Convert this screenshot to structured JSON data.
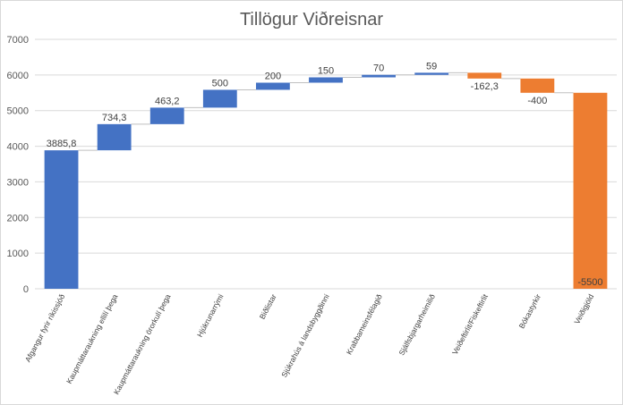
{
  "chart_data": {
    "type": "bar",
    "subtype": "waterfall",
    "title": "Tillögur Viðreisnar",
    "xlabel": "",
    "ylabel": "",
    "ylim": [
      0,
      7000
    ],
    "yticks": [
      "0",
      "1000",
      "2000",
      "3000",
      "4000",
      "5000",
      "6000",
      "7000"
    ],
    "grid": true,
    "categories": [
      "Afgangur fyrir ríkissjóð",
      "Kaupmáttaraukning ellilí þega",
      "Kaupmáttaraukning örorkulí þega",
      "Hjúkrunarrými",
      "Biðlistar",
      "Sjúkrahús á landsbyggðinni",
      "Krabbameinsfélagið",
      "Sjálfsbjargarheimilið",
      "Veiðeftirlit/Fiskeftirlit",
      "Bókastyrkir",
      "Veiðigjöld"
    ],
    "values": [
      3885.8,
      734.3,
      463.2,
      500,
      200,
      150,
      70,
      59,
      -162.3,
      -400,
      -5500
    ],
    "value_labels": [
      "3885,8",
      "734,3",
      "463,2",
      "500",
      "200",
      "150",
      "70",
      "59",
      "-162,3",
      "-400",
      "-5500"
    ],
    "colors": {
      "increase": "#4472c4",
      "decrease": "#ed7d31",
      "grid": "#d9d9d9",
      "text": "#595959"
    }
  }
}
